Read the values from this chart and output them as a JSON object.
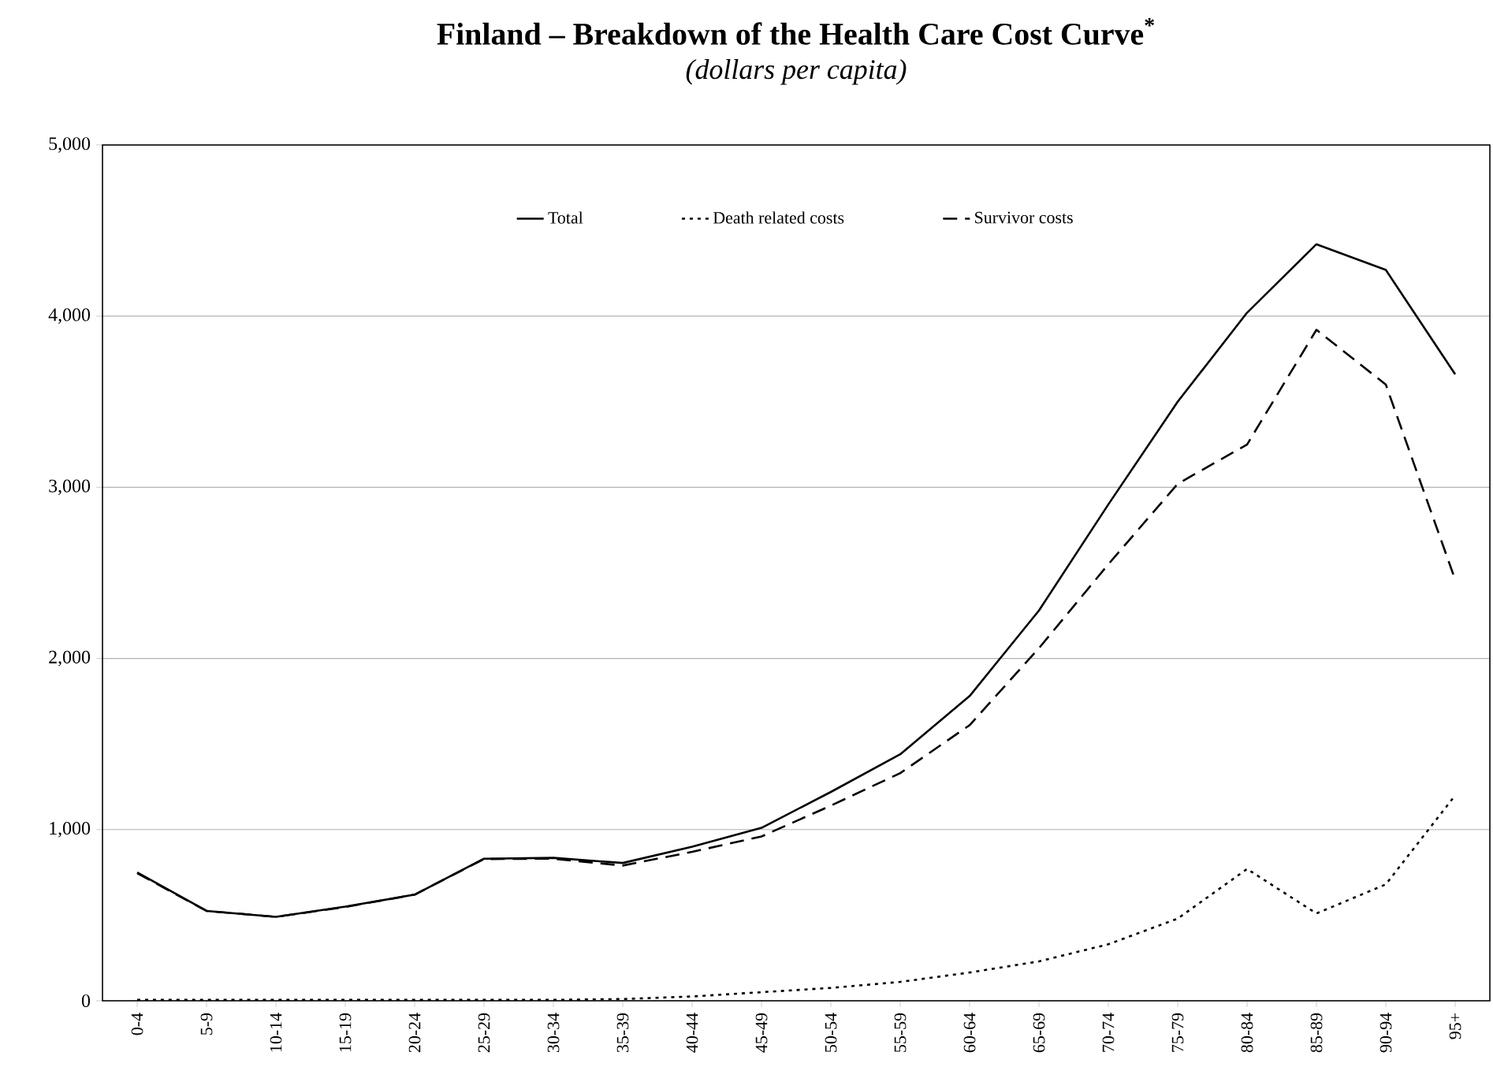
{
  "chart_data": {
    "type": "line",
    "title": "Finland – Breakdown of the Health Care Cost Curve$^{*}$",
    "subtitle": "*(dollars per capita)*",
    "categories": [
      "0-4",
      "5-9",
      "10-14",
      "15-19",
      "20-24",
      "25-29",
      "30-34",
      "35-39",
      "40-44",
      "45-49",
      "50-54",
      "55-59",
      "60-64",
      "65-69",
      "70-74",
      "75-79",
      "80-84",
      "85-89",
      "90-94",
      "95+"
    ],
    "series": [
      {
        "name": "Total",
        "color": "#000000",
        "line_style": "solid",
        "values": [
          750,
          525,
          490,
          550,
          620,
          830,
          835,
          805,
          900,
          1010,
          1220,
          1440,
          1780,
          2280,
          2900,
          3500,
          4020,
          4420,
          4270,
          3660
        ]
      },
      {
        "name": "Death related costs",
        "color": "#000000",
        "line_style": "dotted",
        "values": [
          5,
          5,
          5,
          5,
          5,
          5,
          5,
          10,
          25,
          50,
          75,
          110,
          165,
          230,
          330,
          480,
          770,
          510,
          680,
          1200
        ]
      },
      {
        "name": "Survivor costs",
        "color": "#000000",
        "line_style": "dashed",
        "values": [
          745,
          525,
          490,
          548,
          620,
          828,
          830,
          790,
          870,
          960,
          1140,
          1330,
          1610,
          2060,
          2550,
          3020,
          3250,
          3920,
          3600,
          2460
        ]
      }
    ],
    "ylim": [
      0,
      5000
    ],
    "yticks": [
      0,
      {
        "value": 1000,
        "label": "1,000"
      },
      {
        "value": 2000,
        "label": "2,000"
      },
      {
        "value": 3000,
        "label": "3,000"
      },
      {
        "value": 4000,
        "label": "4,000"
      },
      {
        "value": 5000,
        "label": "5,000"
      }
    ],
    "grid": "y",
    "legend": "top",
    "marker": "none"
  }
}
